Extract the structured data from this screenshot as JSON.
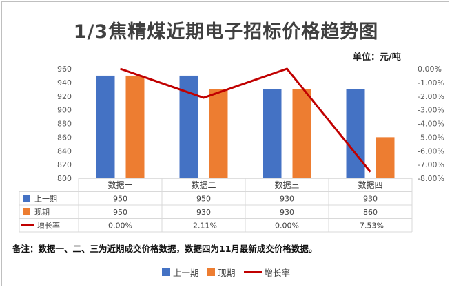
{
  "chart_data": {
    "type": "bar",
    "title": "1/3焦精煤近期电子招标价格趋势图",
    "unit_label": "单位：元/吨",
    "categories": [
      "数据一",
      "数据二",
      "数据三",
      "数据四"
    ],
    "series": [
      {
        "name": "上一期",
        "type": "bar",
        "axis": "left",
        "color": "#4472c4",
        "values": [
          950,
          950,
          930,
          930
        ],
        "labels": [
          "950",
          "950",
          "930",
          "930"
        ]
      },
      {
        "name": "现期",
        "type": "bar",
        "axis": "left",
        "color": "#ed7d31",
        "values": [
          950,
          930,
          930,
          860
        ],
        "labels": [
          "950",
          "930",
          "930",
          "860"
        ]
      },
      {
        "name": "增长率",
        "type": "line",
        "axis": "right",
        "color": "#c00000",
        "values": [
          0.0,
          -2.11,
          0.0,
          -7.53
        ],
        "labels": [
          "0.00%",
          "-2.11%",
          "0.00%",
          "-7.53%"
        ]
      }
    ],
    "y_left": {
      "min": 800,
      "max": 960,
      "step": 20,
      "ticks": [
        "800",
        "820",
        "840",
        "860",
        "880",
        "900",
        "920",
        "940",
        "960"
      ]
    },
    "y_right": {
      "min": -8,
      "max": 0,
      "step": 1,
      "ticks": [
        "-8.00%",
        "-7.00%",
        "-6.00%",
        "-5.00%",
        "-4.00%",
        "-3.00%",
        "-2.00%",
        "-1.00%",
        "0.00%"
      ]
    },
    "grid": false,
    "data_table": true,
    "legend_position": "bottom"
  },
  "note": "备注：数据一、二、三为近期成交价格数据，数据四为11月最新成交价格数据。"
}
